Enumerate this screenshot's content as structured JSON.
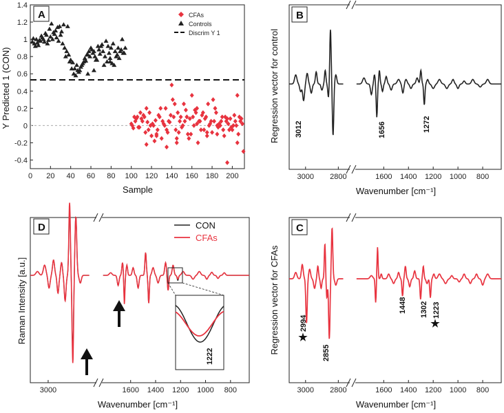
{
  "colors": {
    "cfa": "#e8333f",
    "con": "#222222",
    "axis": "#222222",
    "zero": "#aaaaaa"
  },
  "panels": {
    "A": {
      "label": "A"
    },
    "B": {
      "label": "B"
    },
    "C": {
      "label": "C"
    },
    "D": {
      "label": "D"
    }
  },
  "chart_data": [
    {
      "id": "A",
      "type": "scatter",
      "title": "",
      "xlabel": "Sample",
      "ylabel": "Y Predicted 1 (CON)",
      "xlim": [
        0,
        212
      ],
      "ylim": [
        -0.5,
        1.4
      ],
      "xticks": [
        0,
        20,
        40,
        60,
        80,
        100,
        120,
        140,
        160,
        180,
        200
      ],
      "yticks": [
        -0.4,
        -0.2,
        0,
        0.2,
        0.4,
        0.6,
        0.8,
        1,
        1.2,
        1.4
      ],
      "yticklabels": [
        "-0.4",
        "-0.2",
        "0",
        "0.2",
        "0.4",
        "0.6",
        "0.8",
        "1",
        "1.2",
        "1.4"
      ],
      "threshold": 0.53,
      "legend": {
        "position": "top-right",
        "entries": [
          "CFAs",
          "Controls",
          "Discrim Y 1"
        ]
      },
      "series": [
        {
          "name": "Controls",
          "marker": "triangle",
          "x": [
            2,
            4,
            6,
            8,
            10,
            12,
            14,
            16,
            18,
            20,
            22,
            24,
            26,
            28,
            30,
            32,
            3,
            7,
            11,
            15,
            19,
            23,
            27,
            31,
            5,
            9,
            13,
            17,
            21,
            25,
            29,
            34,
            36,
            38,
            40,
            42,
            44,
            46,
            48,
            50,
            52,
            54,
            56,
            58,
            60,
            62,
            64,
            66,
            68,
            70,
            72,
            74,
            76,
            78,
            80,
            82,
            84,
            86,
            88,
            90,
            92,
            94,
            35,
            39,
            43,
            47,
            51,
            55,
            59,
            63,
            67,
            71,
            75,
            79,
            83,
            87,
            91,
            93,
            41,
            45,
            49,
            53,
            57,
            61,
            65,
            69,
            73,
            77,
            81,
            85,
            89,
            33,
            37,
            57,
            63,
            79
          ],
          "y": [
            0.97,
            0.95,
            1.0,
            0.93,
            0.98,
            1.02,
            0.97,
            1.05,
            0.99,
            1.03,
            1.0,
            1.06,
            1.02,
            0.98,
            1.05,
            0.95,
            1.01,
            0.96,
            1.04,
            1.07,
            1.12,
            1.08,
            1.14,
            1.09,
            0.92,
            0.99,
            1.0,
            0.95,
            1.18,
            1.1,
            1.15,
            0.9,
            0.86,
            0.82,
            0.76,
            0.73,
            0.66,
            0.7,
            0.62,
            0.68,
            0.72,
            0.78,
            0.82,
            0.86,
            0.9,
            0.84,
            0.8,
            0.76,
            0.88,
            0.92,
            0.86,
            0.8,
            0.74,
            0.84,
            0.9,
            0.95,
            0.86,
            0.82,
            0.78,
            0.88,
            0.84,
            0.9,
            0.8,
            0.74,
            0.6,
            0.64,
            0.7,
            0.75,
            0.8,
            0.86,
            0.92,
            0.94,
            0.98,
            0.78,
            0.7,
            0.9,
            1.0,
            0.84,
            0.66,
            0.58,
            0.64,
            0.74,
            0.82,
            0.88,
            0.76,
            0.83,
            0.7,
            0.92,
            0.72,
            0.8,
            0.86,
            1.17,
            1.15,
            0.6,
            0.64,
            0.74
          ]
        },
        {
          "name": "CFAs",
          "marker": "diamond",
          "x": [
            100,
            102,
            104,
            106,
            108,
            110,
            112,
            114,
            116,
            118,
            120,
            122,
            124,
            126,
            128,
            130,
            132,
            134,
            136,
            138,
            140,
            142,
            144,
            146,
            148,
            150,
            152,
            154,
            156,
            158,
            160,
            162,
            164,
            166,
            168,
            170,
            172,
            174,
            176,
            178,
            180,
            182,
            184,
            186,
            188,
            190,
            192,
            194,
            196,
            198,
            200,
            202,
            204,
            206,
            208,
            210,
            101,
            105,
            109,
            113,
            117,
            121,
            125,
            129,
            133,
            137,
            141,
            145,
            149,
            153,
            157,
            161,
            165,
            169,
            173,
            177,
            181,
            185,
            189,
            193,
            197,
            201,
            205,
            209,
            103,
            107,
            111,
            115,
            119,
            123,
            127,
            131,
            135,
            139,
            143,
            147,
            151,
            155,
            159,
            163,
            167,
            171,
            175,
            179,
            183,
            187,
            191,
            195,
            199,
            203,
            207,
            211,
            115,
            125,
            135,
            145,
            155,
            165,
            175,
            185,
            195,
            205
          ],
          "y": [
            0.02,
            -0.03,
            0.05,
            0.1,
            -0.02,
            0.08,
            0.12,
            -0.08,
            0.04,
            0.15,
            -0.12,
            0.0,
            0.06,
            -0.05,
            0.1,
            -0.15,
            0.02,
            0.2,
            -0.08,
            0.04,
            0.47,
            0.1,
            -0.05,
            0.15,
            0.05,
            -0.02,
            0.25,
            0.18,
            -0.1,
            0.08,
            0.35,
            0.0,
            0.15,
            -0.2,
            0.05,
            0.12,
            -0.05,
            0.1,
            0.25,
            0.02,
            -0.08,
            0.05,
            0.15,
            -0.02,
            0.0,
            0.1,
            -0.12,
            0.05,
            0.02,
            0.08,
            -0.05,
            0.12,
            0.0,
            -0.1,
            0.05,
            0.02,
            0.0,
            0.08,
            0.15,
            0.1,
            -0.05,
            0.02,
            -0.1,
            0.2,
            0.0,
            0.05,
            0.3,
            -0.2,
            0.1,
            0.05,
            -0.15,
            0.1,
            0.2,
            -0.05,
            0.08,
            0.0,
            0.3,
            -0.1,
            0.05,
            0.1,
            -0.05,
            0.0,
            0.35,
            0.08,
            0.1,
            -0.02,
            0.05,
            0.2,
            0.0,
            -0.18,
            0.12,
            0.05,
            -0.25,
            0.12,
            0.25,
            -0.08,
            0.0,
            0.1,
            -0.1,
            0.18,
            0.05,
            0.15,
            -0.12,
            0.05,
            0.2,
            0.02,
            -0.05,
            0.08,
            -0.02,
            0.05,
            0.1,
            -0.3,
            -0.22,
            -0.12,
            -0.05,
            -0.15,
            0.1,
            0.02,
            -0.08,
            0.0,
            -0.43,
            -0.2
          ]
        }
      ]
    },
    {
      "id": "B",
      "type": "line",
      "title": "",
      "xlabel": "Wavenumber [cm⁻¹]",
      "ylabel": "Regression vector for control",
      "xlim": [
        3100,
        650
      ],
      "axis_break": [
        2730,
        1830
      ],
      "xticks": [
        3000,
        2800,
        1600,
        1400,
        1200,
        1000,
        800
      ],
      "xticklabels": [
        "3000",
        "2800",
        "1600",
        "1400",
        "1200",
        "1000",
        "800"
      ],
      "y_axis_ticks": "none",
      "annotations": [
        "3012",
        "1656",
        "1272"
      ],
      "series": [
        {
          "name": "control",
          "color": "#222222"
        }
      ]
    },
    {
      "id": "C",
      "type": "line",
      "title": "",
      "xlabel": "Wavenumber [cm⁻¹]",
      "ylabel": "Regression vector for CFAs",
      "xlim": [
        3100,
        650
      ],
      "axis_break": [
        2730,
        1830
      ],
      "xticks": [
        3000,
        2800,
        1600,
        1400,
        1200,
        1000,
        800
      ],
      "xticklabels": [
        "3000",
        "2800",
        "1600",
        "1400",
        "1200",
        "1000",
        "800"
      ],
      "y_axis_ticks": "none",
      "annotations": [
        "2994",
        "2855",
        "1448",
        "1302",
        "1223"
      ],
      "markers": [
        "★",
        "★"
      ],
      "series": [
        {
          "name": "CFAs",
          "color": "#e8333f"
        }
      ]
    },
    {
      "id": "D",
      "type": "line",
      "title": "",
      "xlabel": "Wavenumber [cm⁻¹]",
      "ylabel": "Raman Intensity [a.u.]",
      "xlim": [
        3100,
        650
      ],
      "axis_break": [
        2730,
        1830
      ],
      "xticks": [
        3000,
        1600,
        1400,
        1200,
        1000,
        800
      ],
      "xticklabels": [
        "3000",
        "1600",
        "1400",
        "1200",
        "1000",
        "800"
      ],
      "y_axis_ticks": "none",
      "legend": {
        "position": "top-right",
        "entries": [
          "CON",
          "CFAs"
        ]
      },
      "inset_annotation": "1222",
      "series": [
        {
          "name": "CON",
          "color": "#222222"
        },
        {
          "name": "CFAs",
          "color": "#e8333f"
        }
      ]
    }
  ]
}
